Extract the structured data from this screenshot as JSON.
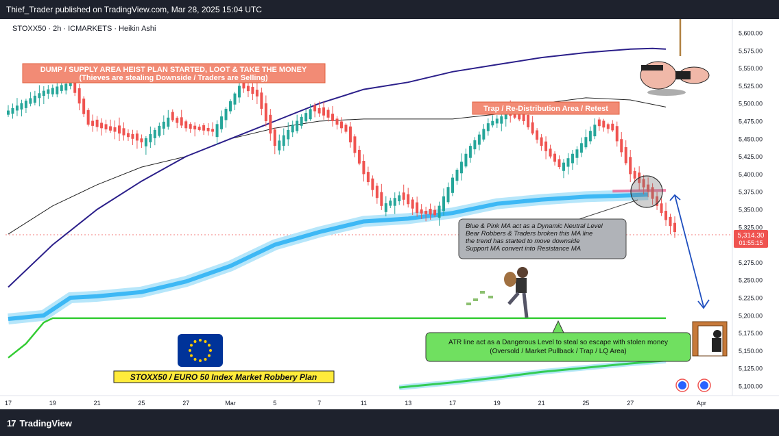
{
  "header": {
    "published": "Thief_Trader published on TradingView.com, Mar 28, 2025 15:04 UTC"
  },
  "symbol_line": "STOXX50 · 2h · ICMARKETS · Heikin Ashi",
  "footer": {
    "logo_mark": "17",
    "logo_text": "TradingView"
  },
  "price_badge": {
    "price": "5,314.30",
    "countdown": "01:55:15"
  },
  "annotations": {
    "dump": {
      "line1": "DUMP / SUPPLY AREA HEIST PLAN STARTED, LOOT & TAKE THE MONEY",
      "line2": "(Thieves are stealing Downside / Traders are Selling)"
    },
    "trap": "Trap / Re-Distribution Area / Retest",
    "ma_note": [
      "Blue & Pink MA act as a Dynamic Neutral Level",
      "Bear Robbers & Traders broken this MA line",
      "the trend has started to move downside",
      "Support MA convert into Resistance MA"
    ],
    "atr_note": [
      "ATR line act as a Dangerous Level to steal so escape with stolen money",
      "(Oversold / Market Pullback / Trap / LQ Area)"
    ],
    "plan": "STOXX50 / EURO 50 Index Market Robbery Plan"
  },
  "colors": {
    "up": "#26a69a",
    "down": "#ef5350",
    "dump_box": "#f28b75",
    "green_box": "#70e060",
    "plan_box": "#ffeb3b",
    "ma_blue": "#3db8f5",
    "ma_navy": "#2b1f8a",
    "atr_green": "#33cc33"
  },
  "chart_data": {
    "type": "candlestick",
    "style": "Heikin Ashi",
    "timeframe": "2h",
    "ylim": [
      5090,
      5615
    ],
    "y_ticks": [
      5100,
      5125,
      5150,
      5175,
      5200,
      5225,
      5250,
      5275,
      5300,
      5325,
      5350,
      5375,
      5400,
      5425,
      5450,
      5475,
      5500,
      5525,
      5550,
      5575,
      5600
    ],
    "y_tick_labels": [
      "5,100.00",
      "5,125.00",
      "5,150.00",
      "5,175.00",
      "5,200.00",
      "5,225.00",
      "5,250.00",
      "5,275.00",
      "5,300.00",
      "5,325.00",
      "5,350.00",
      "5,375.00",
      "5,400.00",
      "5,425.00",
      "5,450.00",
      "5,475.00",
      "5,500.00",
      "5,525.00",
      "5,550.00",
      "5,575.00",
      "5,600.00"
    ],
    "x_tick_labels": [
      {
        "label": "17",
        "i": 0
      },
      {
        "label": "19",
        "i": 10
      },
      {
        "label": "21",
        "i": 20
      },
      {
        "label": "25",
        "i": 30
      },
      {
        "label": "27",
        "i": 40
      },
      {
        "label": "Mar",
        "i": 50
      },
      {
        "label": "5",
        "i": 60
      },
      {
        "label": "7",
        "i": 70
      },
      {
        "label": "11",
        "i": 80
      },
      {
        "label": "13",
        "i": 90
      },
      {
        "label": "17",
        "i": 100
      },
      {
        "label": "19",
        "i": 110
      },
      {
        "label": "21",
        "i": 120
      },
      {
        "label": "25",
        "i": 130
      },
      {
        "label": "27",
        "i": 140
      },
      {
        "label": "Apr",
        "i": 156
      }
    ],
    "last_price": 5314.3,
    "close_path": [
      [
        0,
        5490
      ],
      [
        8,
        5518
      ],
      [
        14,
        5530
      ],
      [
        18,
        5470
      ],
      [
        24,
        5460
      ],
      [
        30,
        5445
      ],
      [
        36,
        5480
      ],
      [
        40,
        5465
      ],
      [
        46,
        5460
      ],
      [
        52,
        5525
      ],
      [
        56,
        5510
      ],
      [
        60,
        5440
      ],
      [
        64,
        5470
      ],
      [
        68,
        5492
      ],
      [
        72,
        5480
      ],
      [
        76,
        5460
      ],
      [
        80,
        5400
      ],
      [
        84,
        5355
      ],
      [
        88,
        5370
      ],
      [
        92,
        5345
      ],
      [
        96,
        5342
      ],
      [
        100,
        5395
      ],
      [
        104,
        5440
      ],
      [
        108,
        5472
      ],
      [
        112,
        5485
      ],
      [
        116,
        5475
      ],
      [
        120,
        5440
      ],
      [
        124,
        5410
      ],
      [
        128,
        5435
      ],
      [
        132,
        5470
      ],
      [
        136,
        5462
      ],
      [
        140,
        5400
      ],
      [
        144,
        5375
      ],
      [
        148,
        5335
      ],
      [
        150,
        5318
      ]
    ],
    "indicators": {
      "ema_navy": [
        [
          0,
          5240
        ],
        [
          10,
          5300
        ],
        [
          20,
          5350
        ],
        [
          30,
          5390
        ],
        [
          40,
          5425
        ],
        [
          50,
          5450
        ],
        [
          60,
          5475
        ],
        [
          70,
          5500
        ],
        [
          80,
          5520
        ],
        [
          90,
          5530
        ],
        [
          100,
          5545
        ],
        [
          110,
          5555
        ],
        [
          120,
          5565
        ],
        [
          130,
          5572
        ],
        [
          140,
          5577
        ],
        [
          145,
          5578
        ],
        [
          148,
          5577
        ]
      ],
      "sma_black": [
        [
          0,
          5315
        ],
        [
          10,
          5355
        ],
        [
          20,
          5385
        ],
        [
          30,
          5410
        ],
        [
          40,
          5425
        ],
        [
          50,
          5450
        ],
        [
          60,
          5465
        ],
        [
          70,
          5475
        ],
        [
          80,
          5478
        ],
        [
          90,
          5478
        ],
        [
          100,
          5478
        ],
        [
          110,
          5485
        ],
        [
          120,
          5500
        ],
        [
          130,
          5508
        ],
        [
          140,
          5505
        ],
        [
          148,
          5495
        ]
      ],
      "ma_blue": [
        [
          0,
          5195
        ],
        [
          8,
          5200
        ],
        [
          14,
          5225
        ],
        [
          20,
          5227
        ],
        [
          30,
          5233
        ],
        [
          40,
          5248
        ],
        [
          50,
          5270
        ],
        [
          60,
          5300
        ],
        [
          70,
          5318
        ],
        [
          80,
          5333
        ],
        [
          90,
          5337
        ],
        [
          100,
          5345
        ],
        [
          110,
          5358
        ],
        [
          120,
          5364
        ],
        [
          130,
          5368
        ],
        [
          140,
          5370
        ],
        [
          144,
          5371
        ]
      ],
      "ma_pink": [
        [
          136,
          5376
        ],
        [
          148,
          5377
        ]
      ],
      "atr_green": [
        [
          0,
          5140
        ],
        [
          4,
          5160
        ],
        [
          8,
          5190
        ],
        [
          10,
          5196
        ],
        [
          148,
          5196
        ]
      ],
      "lower_green": [
        [
          88,
          5098
        ],
        [
          100,
          5105
        ],
        [
          110,
          5112
        ],
        [
          120,
          5120
        ],
        [
          130,
          5126
        ],
        [
          140,
          5132
        ],
        [
          148,
          5136
        ]
      ]
    }
  }
}
